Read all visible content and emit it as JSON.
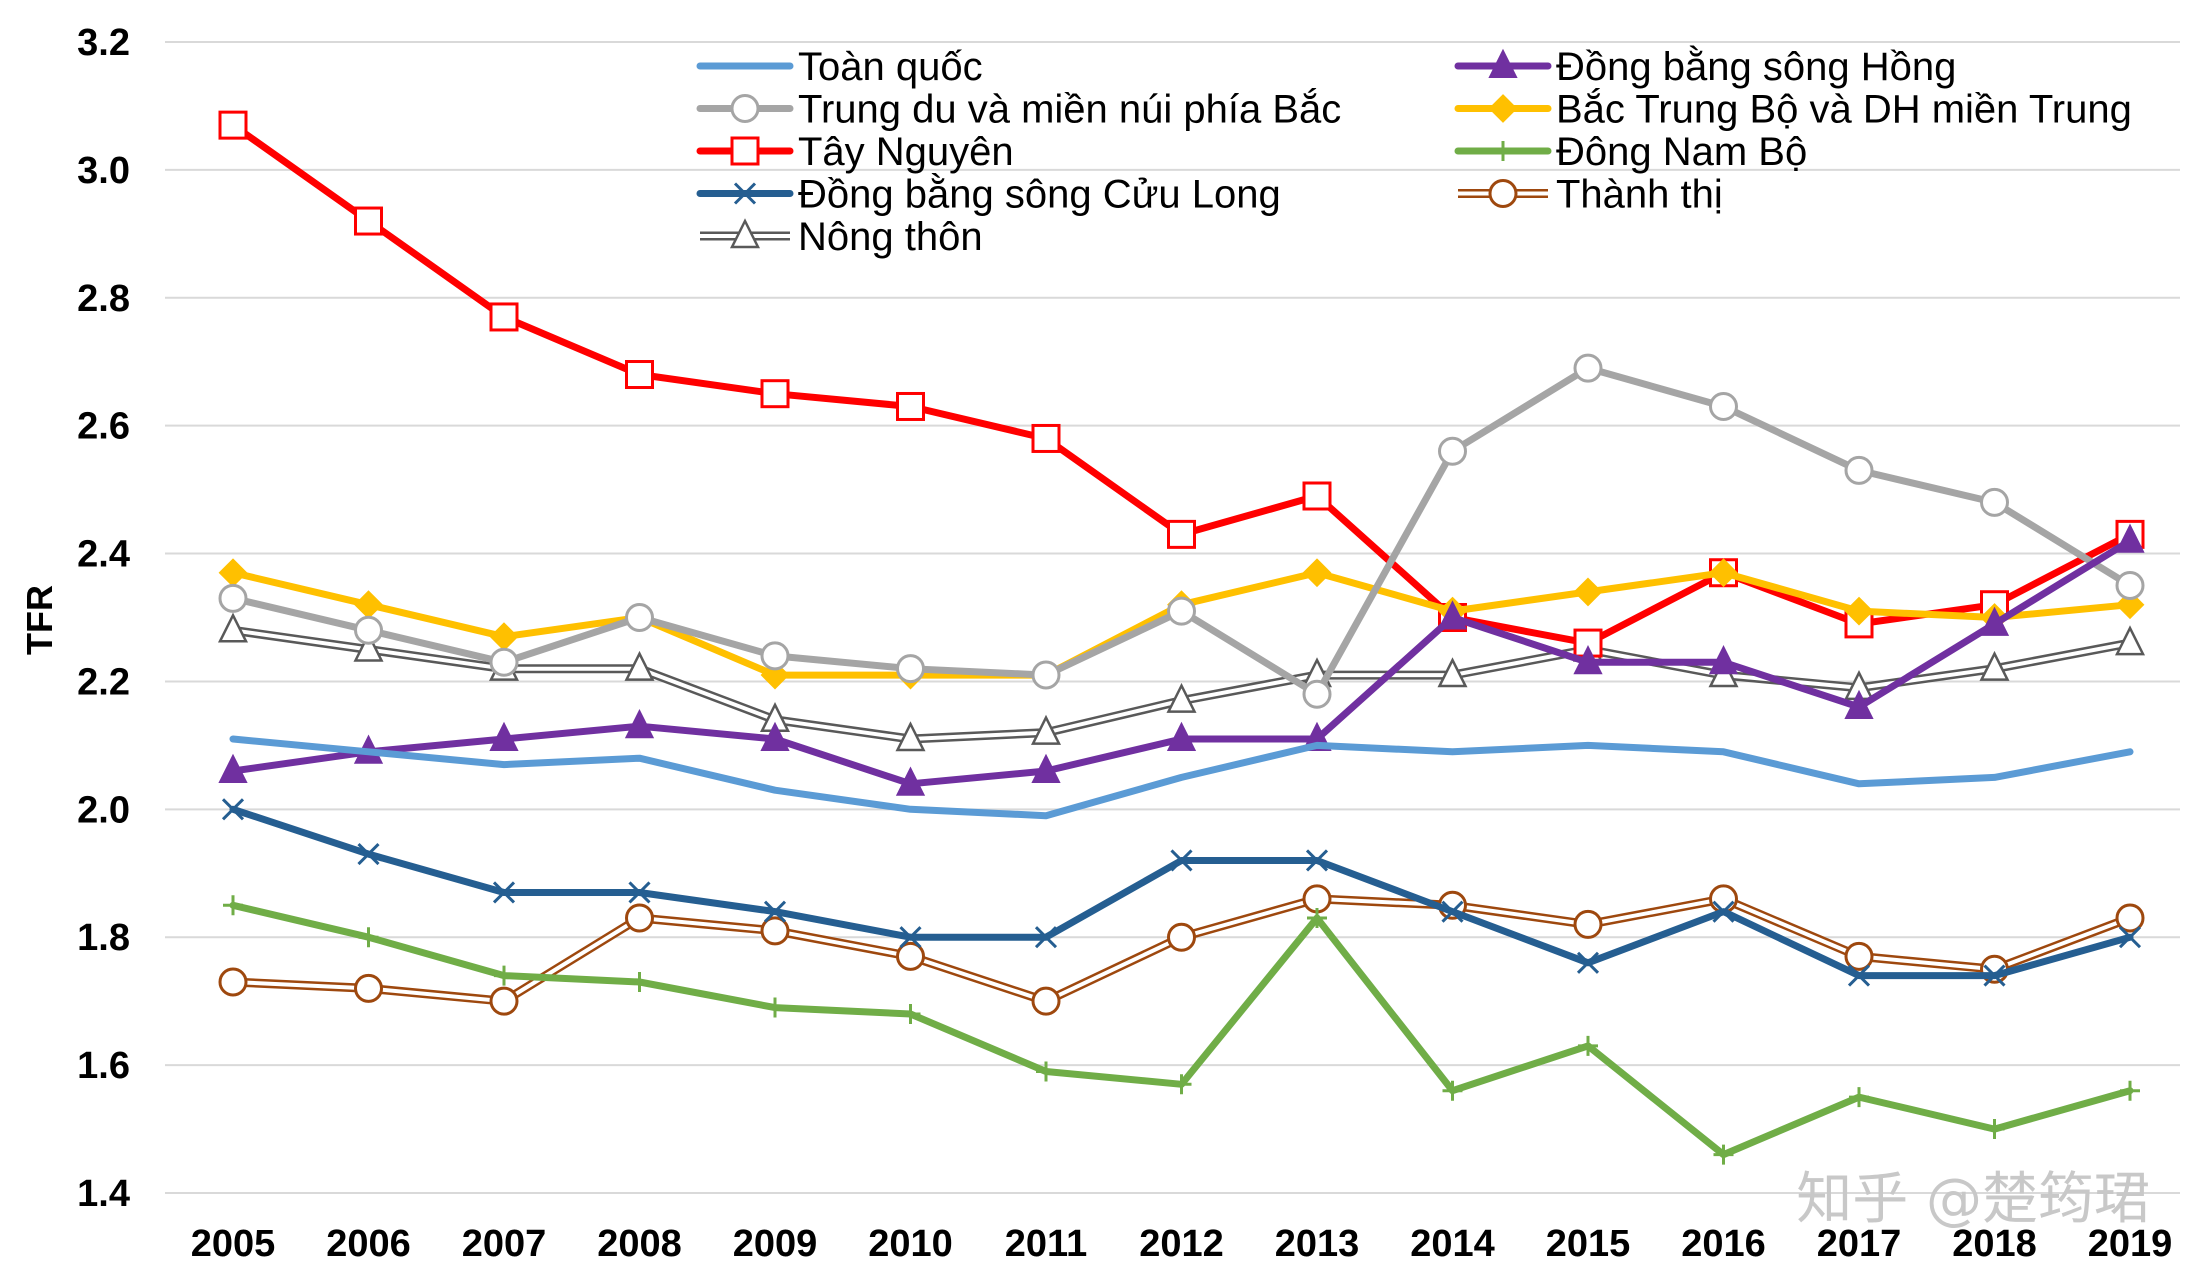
{
  "chart_data": {
    "type": "line",
    "title": "",
    "xlabel": "",
    "ylabel": "TFR",
    "ylim": [
      1.4,
      3.2
    ],
    "y_ticks": [
      "1.4",
      "1.6",
      "1.8",
      "2.0",
      "2.2",
      "2.4",
      "2.6",
      "2.8",
      "3.0",
      "3.2"
    ],
    "grid": "horizontal",
    "legend_position": "top",
    "x": [
      "2005",
      "2006",
      "2007",
      "2008",
      "2009",
      "2010",
      "2011",
      "2012",
      "2013",
      "2014",
      "2015",
      "2016",
      "2017",
      "2018",
      "2019"
    ],
    "series": [
      {
        "name": "Toàn quốc",
        "color": "#5b9bd5",
        "marker": "none",
        "values": [
          2.11,
          2.09,
          2.07,
          2.08,
          2.03,
          2.0,
          1.99,
          2.05,
          2.1,
          2.09,
          2.1,
          2.09,
          2.04,
          2.05,
          2.09
        ]
      },
      {
        "name": "Đồng bằng sông Hồng",
        "color": "#7030a0",
        "marker": "triangle-filled",
        "values": [
          2.06,
          2.09,
          2.11,
          2.13,
          2.11,
          2.04,
          2.06,
          2.11,
          2.11,
          2.3,
          2.23,
          2.23,
          2.16,
          2.29,
          2.42
        ]
      },
      {
        "name": "Trung du và miền núi phía Bắc",
        "color": "#a5a5a5",
        "marker": "circle-open",
        "values": [
          2.33,
          2.28,
          2.23,
          2.3,
          2.24,
          2.22,
          2.21,
          2.31,
          2.18,
          2.56,
          2.69,
          2.63,
          2.53,
          2.48,
          2.35
        ]
      },
      {
        "name": "Bắc Trung Bộ và DH miền Trung",
        "color": "#ffc000",
        "marker": "diamond-filled",
        "values": [
          2.37,
          2.32,
          2.27,
          2.3,
          2.21,
          2.21,
          2.21,
          2.32,
          2.37,
          2.31,
          2.34,
          2.37,
          2.31,
          2.3,
          2.32
        ]
      },
      {
        "name": "Tây Nguyên",
        "color": "#ff0000",
        "marker": "square-open",
        "values": [
          3.07,
          2.92,
          2.77,
          2.68,
          2.65,
          2.63,
          2.58,
          2.43,
          2.49,
          2.3,
          2.26,
          2.37,
          2.29,
          2.32,
          2.43
        ]
      },
      {
        "name": "Đông Nam Bộ",
        "color": "#70ad47",
        "marker": "plus",
        "values": [
          1.85,
          1.8,
          1.74,
          1.73,
          1.69,
          1.68,
          1.59,
          1.57,
          1.83,
          1.56,
          1.63,
          1.46,
          1.55,
          1.5,
          1.56
        ]
      },
      {
        "name": "Đồng bằng sông Cửu Long",
        "color": "#255e91",
        "marker": "x",
        "values": [
          2.0,
          1.93,
          1.87,
          1.87,
          1.84,
          1.8,
          1.8,
          1.92,
          1.92,
          1.84,
          1.76,
          1.84,
          1.74,
          1.74,
          1.8
        ]
      },
      {
        "name": "Thành thị",
        "color": "#9e480e",
        "marker": "circle-open",
        "line": "double",
        "values": [
          1.73,
          1.72,
          1.7,
          1.83,
          1.81,
          1.77,
          1.7,
          1.8,
          1.86,
          1.85,
          1.82,
          1.86,
          1.77,
          1.75,
          1.83
        ]
      },
      {
        "name": "Nông thôn",
        "color": "#595959",
        "marker": "triangle-open",
        "line": "double",
        "values": [
          2.28,
          2.25,
          2.22,
          2.22,
          2.14,
          2.11,
          2.12,
          2.17,
          2.21,
          2.21,
          2.25,
          2.21,
          2.19,
          2.22,
          2.26
        ]
      }
    ]
  },
  "watermark": "知乎 @楚筠珺"
}
